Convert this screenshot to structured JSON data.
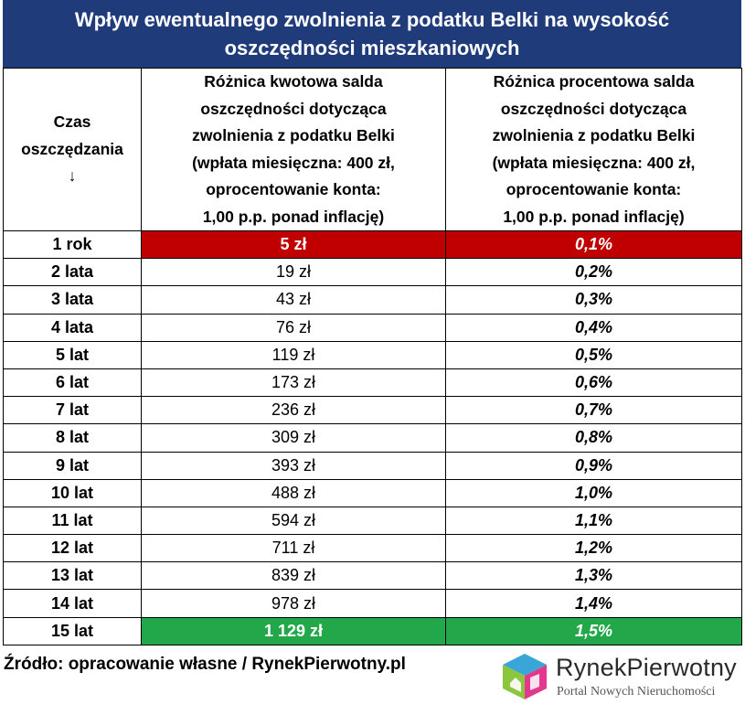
{
  "title": "Wpływ ewentualnego zwolnienia z podatku Belki na wysokość oszczędności mieszkaniowych",
  "header": {
    "col1_line1": "Czas",
    "col1_line2": "oszczędzania",
    "col1_arrow": "↓",
    "col2_lines": [
      "Różnica kwotowa salda",
      "oszczędności dotycząca",
      "zwolnienia z podatku Belki",
      "(wpłata miesięczna: 400 zł,",
      "oprocentowanie konta:",
      "1,00 p.p. ponad inflację)"
    ],
    "col3_lines": [
      "Różnica procentowa salda",
      "oszczędności dotycząca",
      "zwolnienia z podatku Belki",
      "(wpłata miesięczna: 400 zł,",
      "oprocentowanie konta:",
      "1,00 p.p. ponad inflację)"
    ]
  },
  "rows": [
    {
      "period": "1 rok",
      "amount": "5 zł",
      "percent": "0,1%"
    },
    {
      "period": "2 lata",
      "amount": "19 zł",
      "percent": "0,2%"
    },
    {
      "period": "3 lata",
      "amount": "43 zł",
      "percent": "0,3%"
    },
    {
      "period": "4 lata",
      "amount": "76 zł",
      "percent": "0,4%"
    },
    {
      "period": "5 lat",
      "amount": "119 zł",
      "percent": "0,5%"
    },
    {
      "period": "6 lat",
      "amount": "173 zł",
      "percent": "0,6%"
    },
    {
      "period": "7 lat",
      "amount": "236 zł",
      "percent": "0,7%"
    },
    {
      "period": "8 lat",
      "amount": "309 zł",
      "percent": "0,8%"
    },
    {
      "period": "9 lat",
      "amount": "393 zł",
      "percent": "0,9%"
    },
    {
      "period": "10 lat",
      "amount": "488 zł",
      "percent": "1,0%"
    },
    {
      "period": "11 lat",
      "amount": "594 zł",
      "percent": "1,1%"
    },
    {
      "period": "12 lat",
      "amount": "711 zł",
      "percent": "1,2%"
    },
    {
      "period": "13 lat",
      "amount": "839 zł",
      "percent": "1,3%"
    },
    {
      "period": "14 lat",
      "amount": "978 zł",
      "percent": "1,4%"
    },
    {
      "period": "15 lat",
      "amount": "1 129 zł",
      "percent": "1,5%"
    }
  ],
  "source": "Źródło: opracowanie własne / RynekPierwotny.pl",
  "logo": {
    "name_part1": "Rynek",
    "name_part2": "Pierwotny",
    "tagline": "Portal Nowych Nieruchomości"
  },
  "colors": {
    "title_bg": "#1f3b7a",
    "highlight_min": "#c00000",
    "highlight_max": "#22a84a"
  }
}
